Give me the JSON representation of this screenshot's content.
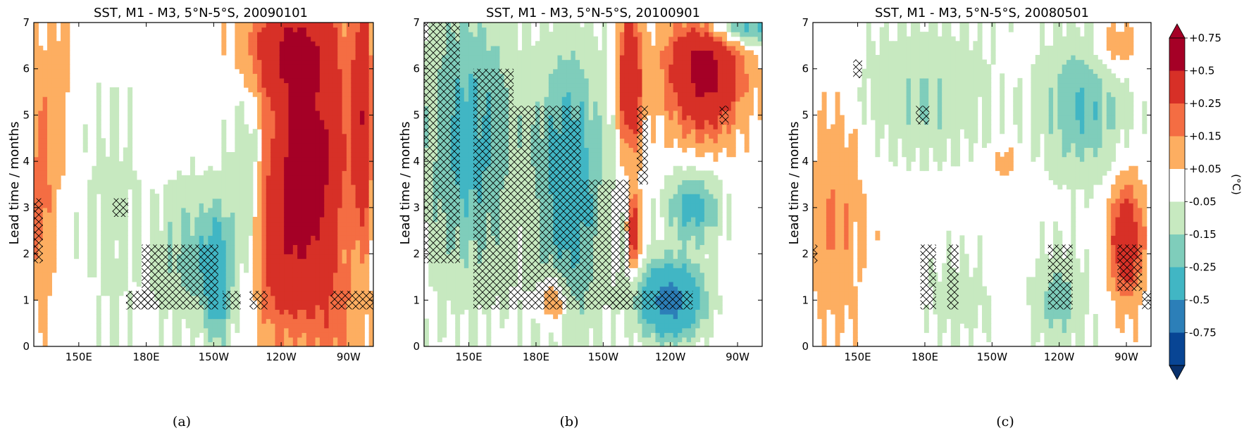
{
  "figure": {
    "colorbar": {
      "labels": [
        "+0.75",
        "+0.5",
        "+0.25",
        "+0.15",
        "+0.05",
        "-0.05",
        "-0.15",
        "-0.25",
        "-0.5",
        "-0.75"
      ],
      "unit": "(°C)",
      "colors": [
        "#a50026",
        "#d73027",
        "#f46d43",
        "#fdae61",
        "#ffffff",
        "#c7e9c0",
        "#7fcdbb",
        "#41b6c4",
        "#2c7fb8",
        "#084594"
      ],
      "top_color": "#a50026",
      "bottom_color": "#08306b"
    },
    "hatch_color": "#000000"
  },
  "chart_data": [
    {
      "type": "heatmap",
      "title": "SST, M1 - M3, 5°N-5°S, 20090101",
      "ylabel": "Lead time / months",
      "xlabel": "",
      "x_range_lon_east": [
        130,
        281
      ],
      "ylim": [
        0,
        7
      ],
      "xticks": [
        "150E",
        "180E",
        "150W",
        "120W",
        "90W"
      ],
      "xtick_lons_east": [
        150,
        180,
        210,
        240,
        270
      ],
      "yticks": [
        "0",
        "1",
        "2",
        "3",
        "4",
        "5",
        "6",
        "7"
      ],
      "caption": "(a)",
      "field_description": "anomaly in °C as function of lead time (y) and longitude (x)",
      "features": [
        {
          "lon": 133,
          "lead": 3.5,
          "value": 0.2,
          "spread_lon": 6,
          "spread_lead": 2.5
        },
        {
          "lon": 142,
          "lead": 5.5,
          "value": 0.1,
          "spread_lon": 6,
          "spread_lead": 2
        },
        {
          "lon": 165,
          "lead": 3.0,
          "value": -0.08,
          "spread_lon": 15,
          "spread_lead": 3
        },
        {
          "lon": 200,
          "lead": 2.0,
          "value": -0.2,
          "spread_lon": 15,
          "spread_lead": 1.5
        },
        {
          "lon": 212,
          "lead": 1.5,
          "value": -0.35,
          "spread_lon": 6,
          "spread_lead": 1.5
        },
        {
          "lon": 225,
          "lead": 3.0,
          "value": -0.25,
          "spread_lon": 8,
          "spread_lead": 2.5
        },
        {
          "lon": 252,
          "lead": 4.0,
          "value": 0.6,
          "spread_lon": 16,
          "spread_lead": 2.2
        },
        {
          "lon": 245,
          "lead": 6.5,
          "value": 0.45,
          "spread_lon": 20,
          "spread_lead": 1.2
        },
        {
          "lon": 240,
          "lead": 2.0,
          "value": 0.3,
          "spread_lon": 20,
          "spread_lead": 2
        },
        {
          "lon": 276,
          "lead": 5.0,
          "value": 0.45,
          "spread_lon": 4,
          "spread_lead": 2.5
        },
        {
          "lon": 265,
          "lead": 0.5,
          "value": 0.15,
          "spread_lon": 12,
          "spread_lead": 1.2
        }
      ],
      "hatched_regions": [
        {
          "lon": [
            130,
            134
          ],
          "lead": [
            1.8,
            3.2
          ]
        },
        {
          "lon": [
            165,
            172
          ],
          "lead": [
            2.8,
            3.2
          ]
        },
        {
          "lon": [
            171,
            187
          ],
          "lead": [
            0.8,
            1.2
          ]
        },
        {
          "lon": [
            178,
            212
          ],
          "lead": [
            0.8,
            2.2
          ]
        },
        {
          "lon": [
            214,
            222
          ],
          "lead": [
            0.8,
            1.2
          ]
        },
        {
          "lon": [
            226,
            234
          ],
          "lead": [
            0.8,
            1.2
          ]
        },
        {
          "lon": [
            262,
            281
          ],
          "lead": [
            0.8,
            1.2
          ]
        }
      ]
    },
    {
      "type": "heatmap",
      "title": "SST, M1 - M3, 5°N-5°S, 20100901",
      "ylabel": "Lead time / months",
      "xlabel": "",
      "x_range_lon_east": [
        130,
        281
      ],
      "ylim": [
        0,
        7
      ],
      "xticks": [
        "150E",
        "180E",
        "150W",
        "120W",
        "90W"
      ],
      "xtick_lons_east": [
        150,
        180,
        210,
        240,
        270
      ],
      "yticks": [
        "0",
        "1",
        "2",
        "3",
        "4",
        "5",
        "6",
        "7"
      ],
      "caption": "(b)",
      "field_description": "anomaly in °C as function of lead time (y) and longitude (x)",
      "features": [
        {
          "lon": 150,
          "lead": 4.5,
          "value": -0.3,
          "spread_lon": 20,
          "spread_lead": 3
        },
        {
          "lon": 195,
          "lead": 3.5,
          "value": -0.35,
          "spread_lon": 15,
          "spread_lead": 3
        },
        {
          "lon": 240,
          "lead": 1.0,
          "value": -0.6,
          "spread_lon": 14,
          "spread_lead": 0.8
        },
        {
          "lon": 250,
          "lead": 3.0,
          "value": -0.3,
          "spread_lon": 12,
          "spread_lead": 0.8
        },
        {
          "lon": 255,
          "lead": 6.0,
          "value": 0.6,
          "spread_lon": 16,
          "spread_lead": 1.3
        },
        {
          "lon": 222,
          "lead": 5.8,
          "value": 0.5,
          "spread_lon": 5,
          "spread_lead": 1.5
        },
        {
          "lon": 224,
          "lead": 2.5,
          "value": 0.4,
          "spread_lon": 2.5,
          "spread_lead": 0.8
        },
        {
          "lon": 188,
          "lead": 1.0,
          "value": 0.25,
          "spread_lon": 6,
          "spread_lead": 0.6
        },
        {
          "lon": 270,
          "lead": 6.9,
          "value": -0.35,
          "spread_lon": 20,
          "spread_lead": 0.4
        }
      ],
      "hatched_regions": [
        {
          "lon": [
            130,
            146
          ],
          "lead": [
            1.8,
            7.0
          ]
        },
        {
          "lon": [
            152,
            170
          ],
          "lead": [
            0.8,
            6.0
          ]
        },
        {
          "lon": [
            170,
            200
          ],
          "lead": [
            0.8,
            5.2
          ]
        },
        {
          "lon": [
            200,
            222
          ],
          "lead": [
            0.8,
            3.6
          ]
        },
        {
          "lon": [
            212,
            250
          ],
          "lead": [
            0.8,
            1.2
          ]
        },
        {
          "lon": [
            225,
            230
          ],
          "lead": [
            3.5,
            5.2
          ]
        },
        {
          "lon": [
            262,
            266
          ],
          "lead": [
            4.8,
            5.2
          ]
        }
      ]
    },
    {
      "type": "heatmap",
      "title": "SST, M1 - M3, 5°N-5°S, 20080501",
      "ylabel": "Lead time / months",
      "xlabel": "",
      "x_range_lon_east": [
        130,
        281
      ],
      "ylim": [
        0,
        7
      ],
      "xticks": [
        "150E",
        "180E",
        "150W",
        "120W",
        "90W"
      ],
      "xtick_lons_east": [
        150,
        180,
        210,
        240,
        270
      ],
      "yticks": [
        "0",
        "1",
        "2",
        "3",
        "4",
        "5",
        "6",
        "7"
      ],
      "caption": "(c)",
      "field_description": "anomaly in °C as function of lead time (y) and longitude (x)",
      "features": [
        {
          "lon": 140,
          "lead": 3.0,
          "value": 0.15,
          "spread_lon": 12,
          "spread_lead": 2.5
        },
        {
          "lon": 215,
          "lead": 4.0,
          "value": 0.1,
          "spread_lon": 5,
          "spread_lead": 0.5
        },
        {
          "lon": 270,
          "lead": 2.3,
          "value": 0.45,
          "spread_lon": 7,
          "spread_lead": 1.2
        },
        {
          "lon": 265,
          "lead": 6.5,
          "value": 0.15,
          "spread_lon": 10,
          "spread_lead": 0.6
        },
        {
          "lon": 250,
          "lead": 5.2,
          "value": -0.25,
          "spread_lon": 18,
          "spread_lead": 1.5
        },
        {
          "lon": 180,
          "lead": 5.5,
          "value": -0.15,
          "spread_lon": 30,
          "spread_lead": 1.5
        },
        {
          "lon": 240,
          "lead": 1.0,
          "value": -0.2,
          "spread_lon": 12,
          "spread_lead": 1
        },
        {
          "lon": 195,
          "lead": 1.0,
          "value": -0.1,
          "spread_lon": 15,
          "spread_lead": 1
        }
      ],
      "hatched_regions": [
        {
          "lon": [
            130,
            132
          ],
          "lead": [
            1.8,
            2.2
          ]
        },
        {
          "lon": [
            148,
            152
          ],
          "lead": [
            5.8,
            6.2
          ]
        },
        {
          "lon": [
            176,
            182
          ],
          "lead": [
            4.8,
            5.2
          ]
        },
        {
          "lon": [
            178,
            185
          ],
          "lead": [
            0.8,
            2.2
          ]
        },
        {
          "lon": [
            190,
            195
          ],
          "lead": [
            0.8,
            2.2
          ]
        },
        {
          "lon": [
            235,
            246
          ],
          "lead": [
            0.8,
            2.2
          ]
        },
        {
          "lon": [
            266,
            277
          ],
          "lead": [
            1.2,
            2.2
          ]
        },
        {
          "lon": [
            277,
            281
          ],
          "lead": [
            0.8,
            1.2
          ]
        }
      ]
    }
  ]
}
